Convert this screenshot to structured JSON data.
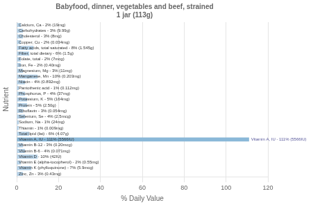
{
  "chart_data": {
    "type": "bar",
    "orientation": "horizontal",
    "title": "Babyfood, dinner, vegetables and beef, strained\n1 jar (113g)",
    "x_label": "% Daily Value",
    "y_label": "Nutrient",
    "categories": [
      "Calcium, Ca - 2% (19mg)",
      "Carbohydrates - 3% (9.99g)",
      "Cholesterol - 3% (8mg)",
      "Copper, Cu - 2% (0.034mg)",
      "Fatty acids, total saturated - 8% (1.545g)",
      "Fiber, total dietary - 6% (1.5g)",
      "Folate, total - 2% (7mcg)",
      "Iron, Fe - 2% (0.40mg)",
      "Magnesium, Mg - 3% (11mg)",
      "Manganese, Mn - 10% (0.203mg)",
      "Niacin - 4% (0.892mg)",
      "Pantothenic acid - 1% (0.112mg)",
      "Phosphorus, P - 4% (37mg)",
      "Potassium, K - 5% (164mg)",
      "Protein - 5% (2.50g)",
      "Riboflavin - 3% (0.054mg)",
      "Selenium, Se - 4% (2.5mcg)",
      "Sodium, Na - 1% (24mg)",
      "Thiamin - 1% (0.009mg)",
      "Total lipid (fat) - 6% (4.07g)",
      "Vitamin A, IU - 111% (5566IU)",
      "Vitamin B-12 - 3% (0.20mcg)",
      "Vitamin B-6 - 4% (0.071mg)",
      "Vitamin D - 10% (42IU)",
      "Vitamin E (alpha-tocopherol) - 2% (0.55mg)",
      "Vitamin K (phylloquinone) - 7% (5.9mcg)",
      "Zinc, Zn - 3% (0.43mg)"
    ],
    "values": [
      2,
      3,
      3,
      2,
      8,
      6,
      2,
      2,
      3,
      10,
      4,
      1,
      4,
      5,
      5,
      3,
      4,
      1,
      1,
      6,
      111,
      3,
      4,
      10,
      2,
      7,
      3
    ],
    "colors": [
      "#b8d4ea",
      "#b8d4ea",
      "#b8d4ea",
      "#b8d4ea",
      "#b8d4ea",
      "#b8d4ea",
      "#b8d4ea",
      "#b8d4ea",
      "#b8d4ea",
      "#b8d4ea",
      "#b8d4ea",
      "#b8d4ea",
      "#b8d4ea",
      "#b8d4ea",
      "#b8d4ea",
      "#b8d4ea",
      "#b8d4ea",
      "#b8d4ea",
      "#b8d4ea",
      "#b8d4ea",
      "#8ab8d8",
      "#b8d4ea",
      "#b8d4ea",
      "#b8d4ea",
      "#b8d4ea",
      "#b8d4ea",
      "#b8d4ea"
    ],
    "annotations": [
      {
        "text": "Vitamin A, IU - 111% (5566IU)",
        "category": "Vitamin A, IU - 111% (5566IU)"
      }
    ],
    "xlim": [
      0,
      120
    ],
    "xticks": [
      0,
      20,
      40,
      60,
      80,
      100,
      120
    ],
    "grid": true,
    "tick_labels": "x"
  }
}
